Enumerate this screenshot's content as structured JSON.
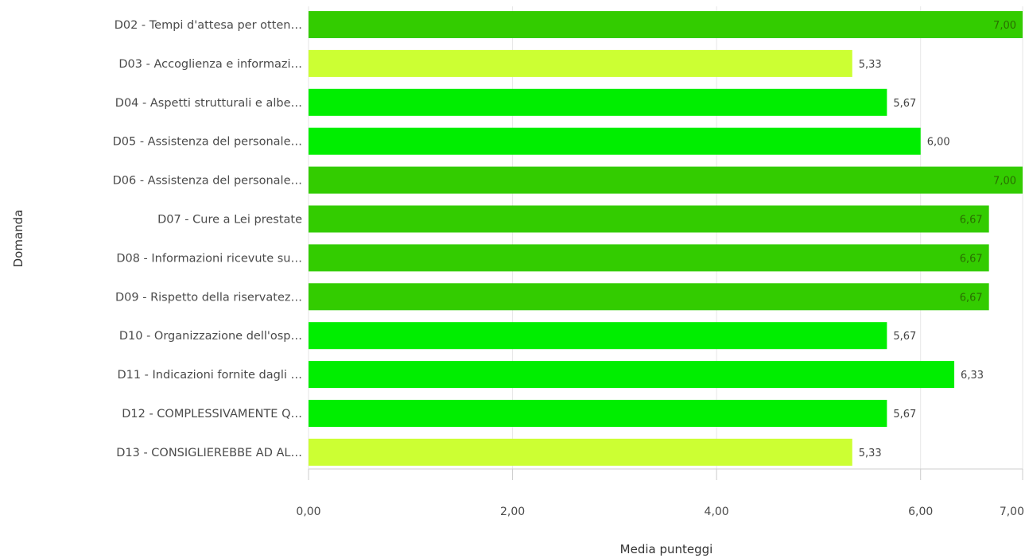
{
  "chart_data": {
    "type": "bar",
    "orientation": "horizontal",
    "title": "",
    "xlabel": "Media punteggi",
    "ylabel": "Domanda",
    "xlim": [
      0,
      7
    ],
    "xticks": [
      0,
      2,
      4,
      6,
      7
    ],
    "xtick_labels": [
      "0,00",
      "2,00",
      "4,00",
      "6,00",
      "7,00"
    ],
    "grid": true,
    "categories": [
      "D02 - Tempi d'attesa per otten…",
      "D03 - Accoglienza e informazi…",
      "D04 - Aspetti strutturali e albe…",
      "D05 - Assistenza del personale…",
      "D06 - Assistenza del personale…",
      "D07 - Cure a Lei prestate",
      "D08 - Informazioni ricevute su…",
      "D09 - Rispetto della riservatez…",
      "D10 - Organizzazione dell'osp…",
      "D11 - Indicazioni fornite dagli …",
      "D12 - COMPLESSIVAMENTE Q…",
      "D13 - CONSIGLIEREBBE AD AL…"
    ],
    "values": [
      7.0,
      5.33,
      5.67,
      6.0,
      7.0,
      6.67,
      6.67,
      6.67,
      5.67,
      6.33,
      5.67,
      5.33
    ],
    "value_labels": [
      "7,00",
      "5,33",
      "5,67",
      "6,00",
      "7,00",
      "6,67",
      "6,67",
      "6,67",
      "5,67",
      "6,33",
      "5,67",
      "5,33"
    ],
    "bar_colors": [
      "#33cc00",
      "#ccff33",
      "#00ee00",
      "#00ee00",
      "#33cc00",
      "#33cc00",
      "#33cc00",
      "#33cc00",
      "#00ee00",
      "#00ee00",
      "#00ee00",
      "#ccff33"
    ],
    "label_inside": [
      true,
      false,
      false,
      false,
      true,
      true,
      true,
      true,
      false,
      false,
      false,
      false
    ],
    "colors": {
      "grid": "#e6e6e6",
      "axis": "#cccccc",
      "label_inside": "#2a6f00",
      "label_outside": "#444444"
    }
  }
}
